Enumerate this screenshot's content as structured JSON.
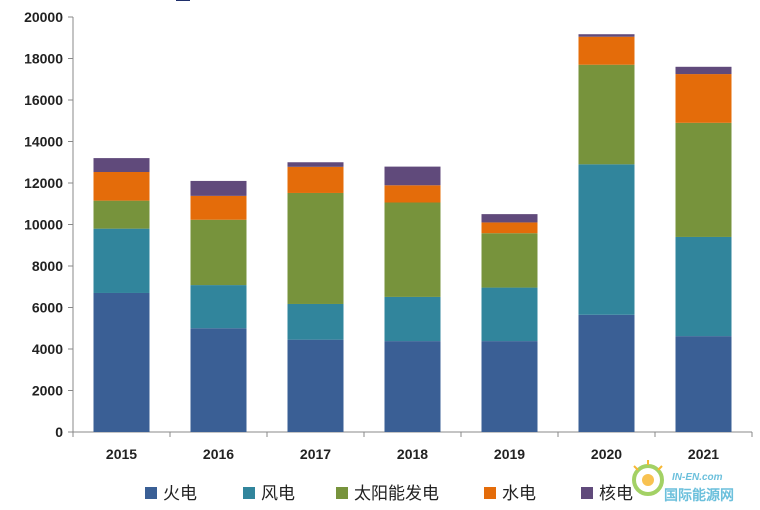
{
  "chart_data": {
    "type": "bar",
    "stacked": true,
    "title": "",
    "xlabel": "",
    "ylabel": "",
    "categories": [
      "2015",
      "2016",
      "2017",
      "2018",
      "2019",
      "2020",
      "2021"
    ],
    "ylim": [
      0,
      20000
    ],
    "yticks": [
      0,
      2000,
      4000,
      6000,
      8000,
      10000,
      12000,
      14000,
      16000,
      18000,
      20000
    ],
    "grid": false,
    "legend_position": "bottom",
    "series": [
      {
        "name": "火电",
        "color": "#3a5f95",
        "values": [
          6700,
          5000,
          4450,
          4380,
          4380,
          5650,
          4620
        ]
      },
      {
        "name": "风电",
        "color": "#31859c",
        "values": [
          3100,
          2080,
          1720,
          2130,
          2580,
          7250,
          4780
        ]
      },
      {
        "name": "太阳能发电",
        "color": "#77933c",
        "values": [
          1350,
          3150,
          5350,
          4550,
          2620,
          4800,
          5500
        ]
      },
      {
        "name": "水电",
        "color": "#e46c0a",
        "values": [
          1380,
          1150,
          1260,
          830,
          520,
          1350,
          2350
        ]
      },
      {
        "name": "核电",
        "color": "#604a7b",
        "values": [
          670,
          720,
          220,
          900,
          400,
          120,
          350
        ]
      }
    ]
  },
  "watermark": {
    "text": "国际能源网",
    "subtext": "IN-EN.com"
  }
}
